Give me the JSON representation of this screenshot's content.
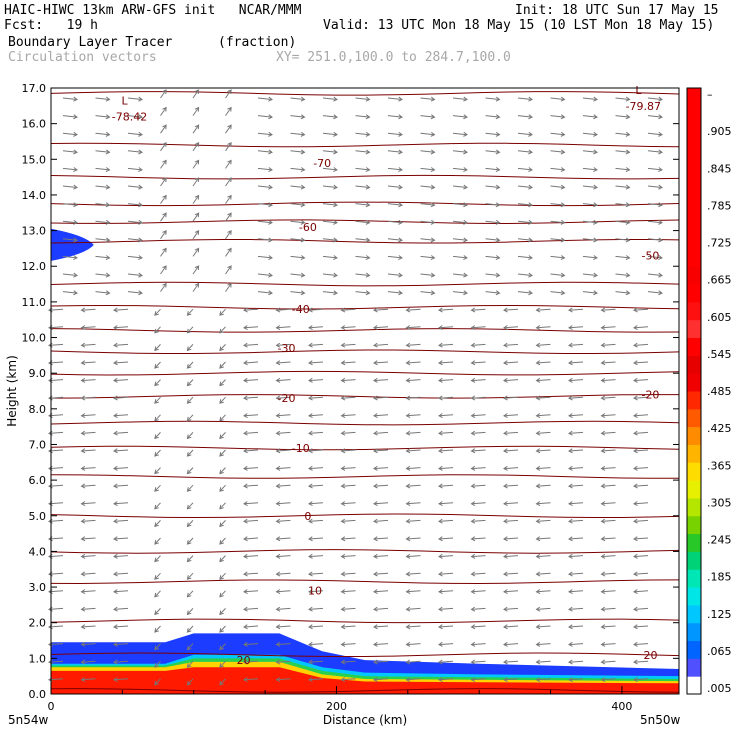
{
  "header": {
    "line1_left": "HAIC-HIWC 13km ARW-GFS init   NCAR/MMM",
    "line1_right": "Init: 18 UTC Sun 17 May 15",
    "line2_left": "Fcst:   19 h",
    "line2_right": "Valid: 13 UTC Mon 18 May 15 (10 LST Mon 18 May 15)",
    "field_name": "Boundary Layer Tracer",
    "field_units": "(fraction)",
    "vector_label": "Circulation vectors",
    "xsec_label": "XY= 251.0,100.0 to 284.7,100.0"
  },
  "chart_data": {
    "type": "heatmap",
    "title": "Boundary Layer Tracer",
    "units": "(fraction)",
    "xlabel": "Distance (km)",
    "ylabel": "Height (km)",
    "xlim": [
      0,
      440
    ],
    "ylim": [
      0,
      17
    ],
    "x_ticks": [
      0,
      200,
      400
    ],
    "x_tick_labels": [
      "0",
      "200",
      "400"
    ],
    "y_ticks": [
      0,
      1,
      2,
      3,
      4,
      5,
      6,
      7,
      8,
      9,
      10,
      11,
      12,
      13,
      14,
      15,
      16,
      17
    ],
    "y_tick_labels": [
      "0.0",
      "1.0",
      "2.0",
      "3.0",
      "4.0",
      "5.0",
      "6.0",
      "7.0",
      "8.0",
      "9.0",
      "10.0",
      "11.0",
      "12.0",
      "13.0",
      "14.0",
      "15.0",
      "16.0",
      "17.0"
    ],
    "endpoint_labels": {
      "left": "5n54w",
      "right": "5n50w"
    },
    "colorbar": {
      "ticks": [
        ".005",
        ".065",
        ".125",
        ".185",
        ".245",
        ".305",
        ".365",
        ".425",
        ".485",
        ".545",
        ".605",
        ".665",
        ".725",
        ".785",
        ".845",
        ".905",
        "–"
      ],
      "colors": [
        "#ffffff",
        "#5050ff",
        "#0064ff",
        "#0096ff",
        "#00c8ff",
        "#00e6e6",
        "#00e6b4",
        "#00d278",
        "#28c828",
        "#78d200",
        "#b4e600",
        "#e6f000",
        "#ffdc00",
        "#ffb400",
        "#ff8c00",
        "#ff5a00",
        "#ff2800",
        "#f00000",
        "#e60000",
        "#ff0000",
        "#ff3030",
        "#ff1010",
        "#ff0000",
        "#f80000",
        "#ff0000",
        "#ff0000",
        "#ff0000",
        "#ff0000",
        "#ff0000",
        "#ff0000",
        "#ff0000",
        "#ff0000",
        "#ff0000",
        "#ff0000"
      ]
    },
    "tracer_top_km": [
      {
        "x": 0,
        "top": 1.45,
        "layers": [
          0.85,
          0.8,
          0.75,
          0.65
        ]
      },
      {
        "x": 80,
        "top": 1.45,
        "layers": [
          0.85,
          0.8,
          0.75,
          0.65
        ]
      },
      {
        "x": 100,
        "top": 1.7,
        "layers": [
          1.1,
          1.0,
          0.9,
          0.75
        ]
      },
      {
        "x": 160,
        "top": 1.7,
        "layers": [
          1.1,
          1.0,
          0.9,
          0.75
        ]
      },
      {
        "x": 190,
        "top": 1.2,
        "layers": [
          0.75,
          0.65,
          0.55,
          0.45
        ]
      },
      {
        "x": 220,
        "top": 0.95,
        "layers": [
          0.6,
          0.5,
          0.42,
          0.35
        ]
      },
      {
        "x": 300,
        "top": 0.85,
        "layers": [
          0.55,
          0.47,
          0.4,
          0.33
        ]
      },
      {
        "x": 440,
        "top": 0.7,
        "layers": [
          0.5,
          0.42,
          0.36,
          0.3
        ]
      }
    ],
    "upper_tracer": {
      "x_max": 30,
      "y_center": 12.6,
      "half_thickness": 0.45
    },
    "contour_labels": [
      {
        "text": "-78.42",
        "x": 55,
        "y": 16.2,
        "low": true
      },
      {
        "text": "-79.87",
        "x": 415,
        "y": 16.5,
        "low": true
      },
      {
        "text": "-70",
        "x": 190,
        "y": 14.9
      },
      {
        "text": "-60",
        "x": 180,
        "y": 13.1
      },
      {
        "text": "-50",
        "x": 420,
        "y": 12.3
      },
      {
        "text": "-40",
        "x": 175,
        "y": 10.8
      },
      {
        "text": "-30",
        "x": 165,
        "y": 9.7
      },
      {
        "text": "-20",
        "x": 165,
        "y": 8.3
      },
      {
        "text": "-20",
        "x": 420,
        "y": 8.4
      },
      {
        "text": "-10",
        "x": 175,
        "y": 6.9
      },
      {
        "text": "0",
        "x": 180,
        "y": 5.0
      },
      {
        "text": "10",
        "x": 185,
        "y": 2.9
      },
      {
        "text": "20",
        "x": 135,
        "y": 0.95
      },
      {
        "text": "20",
        "x": 420,
        "y": 1.1
      }
    ],
    "low_marker": "L",
    "isotherm_heights_km": [
      16.85,
      15.4,
      14.5,
      13.75,
      13.25,
      12.7,
      11.5,
      10.85,
      10.2,
      9.6,
      9.0,
      8.35,
      7.6,
      6.9,
      6.1,
      5.0,
      4.0,
      3.15,
      2.05,
      1.1,
      0.1
    ]
  }
}
